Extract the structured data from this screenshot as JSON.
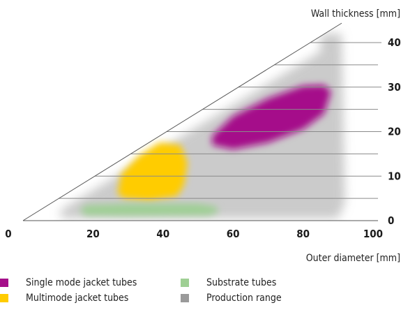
{
  "chart_data": {
    "type": "area",
    "xlabel": "Outer diameter [mm]",
    "ylabel": "Wall thickness [mm]",
    "x_ticks": [
      0,
      20,
      40,
      60,
      80,
      100
    ],
    "y_ticks": [
      0,
      10,
      20,
      30,
      40
    ],
    "xlim": [
      0,
      100
    ],
    "ylim": [
      0,
      45
    ],
    "boundary_line": {
      "x": [
        0,
        100
      ],
      "y": [
        0,
        45
      ]
    },
    "series": [
      {
        "name": "Production range",
        "color": "#a8a8a8",
        "polygon": [
          [
            12,
            3
          ],
          [
            10,
            1.5
          ],
          [
            12,
            0.5
          ],
          [
            90,
            0.5
          ],
          [
            92,
            4
          ],
          [
            91,
            42
          ],
          [
            85,
            42
          ],
          [
            85,
            38
          ]
        ]
      },
      {
        "name": "Single mode jacket tubes",
        "color": "#a50f8a",
        "polygon": [
          [
            54,
            19
          ],
          [
            60,
            23.5
          ],
          [
            70,
            27.5
          ],
          [
            80,
            30.3
          ],
          [
            86,
            30.5
          ],
          [
            88,
            29
          ],
          [
            86,
            24
          ],
          [
            80,
            20.5
          ],
          [
            70,
            17.5
          ],
          [
            60,
            16
          ],
          [
            54,
            17
          ]
        ]
      },
      {
        "name": "Multimode jacket tubes",
        "color": "#ffcc00",
        "polygon": [
          [
            27,
            6
          ],
          [
            28,
            10.5
          ],
          [
            33,
            14.5
          ],
          [
            39,
            17.5
          ],
          [
            45,
            17
          ],
          [
            47,
            13
          ],
          [
            46,
            8
          ],
          [
            44,
            5.5
          ],
          [
            36,
            4.5
          ],
          [
            29,
            5
          ]
        ]
      },
      {
        "name": "Substrate tubes",
        "color": "#9fcf94",
        "polygon": [
          [
            16,
            2.2
          ],
          [
            18,
            3.5
          ],
          [
            30,
            3.8
          ],
          [
            50,
            3.8
          ],
          [
            55,
            3.2
          ],
          [
            56,
            2
          ],
          [
            53,
            1.2
          ],
          [
            30,
            1.1
          ],
          [
            18,
            1.2
          ]
        ]
      }
    ],
    "legend": [
      {
        "label": "Single mode jacket tubes",
        "color": "#a50f8a"
      },
      {
        "label": "Multimode jacket tubes",
        "color": "#ffcc00"
      },
      {
        "label": "Substrate tubes",
        "color": "#9fcf94"
      },
      {
        "label": "Production range",
        "color": "#9a9a9a"
      }
    ]
  }
}
